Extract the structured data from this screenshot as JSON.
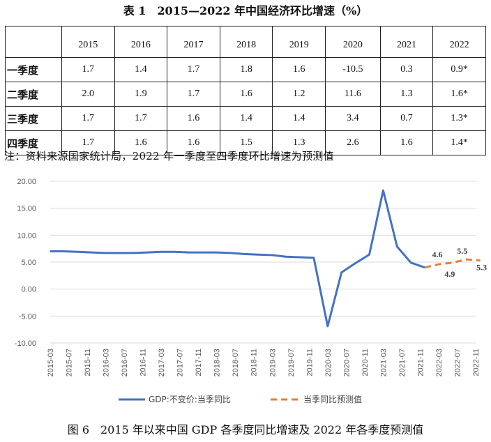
{
  "table": {
    "title": "表 1　2015—2022 年中国经济环比增速（%）",
    "years": [
      "2015",
      "2016",
      "2017",
      "2018",
      "2019",
      "2020",
      "2021",
      "2022"
    ],
    "rows": [
      {
        "label": "一季度",
        "values": [
          "1.7",
          "1.4",
          "1.7",
          "1.8",
          "1.6",
          "-10.5",
          "0.3",
          "0.9*"
        ]
      },
      {
        "label": "二季度",
        "values": [
          "2.0",
          "1.9",
          "1.7",
          "1.6",
          "1.2",
          "11.6",
          "1.3",
          "1.6*"
        ]
      },
      {
        "label": "三季度",
        "values": [
          "1.7",
          "1.7",
          "1.6",
          "1.4",
          "1.4",
          "3.4",
          "0.7",
          "1.3*"
        ]
      },
      {
        "label": "四季度",
        "values": [
          "1.7",
          "1.6",
          "1.6",
          "1.5",
          "1.3",
          "2.6",
          "1.6",
          "1.4*"
        ]
      }
    ],
    "note": "注：资料来源国家统计局，2022 年一季度至四季度环比增速为预测值"
  },
  "chart_data": {
    "type": "line",
    "title": "",
    "xlabel": "",
    "ylabel": "",
    "ylim": [
      -10,
      20
    ],
    "yticks": [
      "20.00",
      "15.00",
      "10.00",
      "5.00",
      "0.00",
      "-5.00",
      "-10.00"
    ],
    "grid": true,
    "legend_position": "bottom",
    "x": [
      "2015-03",
      "2015-07",
      "2015-11",
      "2016-03",
      "2016-07",
      "2016-11",
      "2017-03",
      "2017-07",
      "2017-11",
      "2018-03",
      "2018-07",
      "2018-11",
      "2019-03",
      "2019-07",
      "2019-11",
      "2020-03",
      "2020-07",
      "2020-11",
      "2021-03",
      "2021-07",
      "2021-11",
      "2022-03",
      "2022-07",
      "2022-11"
    ],
    "series": [
      {
        "name": "GDP:不变价:当季同比",
        "color": "#4472C4",
        "style": "solid",
        "x": [
          "2015-03",
          "2015-06",
          "2015-09",
          "2015-12",
          "2016-03",
          "2016-06",
          "2016-09",
          "2016-12",
          "2017-03",
          "2017-06",
          "2017-09",
          "2017-12",
          "2018-03",
          "2018-06",
          "2018-09",
          "2018-12",
          "2019-03",
          "2019-06",
          "2019-09",
          "2019-12",
          "2020-03",
          "2020-06",
          "2020-09",
          "2020-12",
          "2021-03",
          "2021-06",
          "2021-09",
          "2021-12"
        ],
        "values": [
          7.0,
          7.0,
          6.9,
          6.8,
          6.7,
          6.7,
          6.7,
          6.8,
          6.9,
          6.9,
          6.8,
          6.8,
          6.8,
          6.7,
          6.5,
          6.4,
          6.3,
          6.0,
          5.9,
          5.8,
          -6.9,
          3.1,
          4.8,
          6.4,
          18.3,
          7.9,
          4.9,
          4.0
        ]
      },
      {
        "name": "当季同比预测值",
        "color": "#ED7D31",
        "style": "dashed",
        "x": [
          "2021-12",
          "2022-03",
          "2022-06",
          "2022-09",
          "2022-12"
        ],
        "values": [
          4.0,
          4.6,
          4.9,
          5.5,
          5.3
        ],
        "labels": [
          "",
          "4.6",
          "4.9",
          "5.5",
          "5.3"
        ]
      }
    ]
  },
  "figure": {
    "caption": "图 6　2015 年以来中国 GDP 各季度同比增速及 2022 年各季度预测值"
  }
}
